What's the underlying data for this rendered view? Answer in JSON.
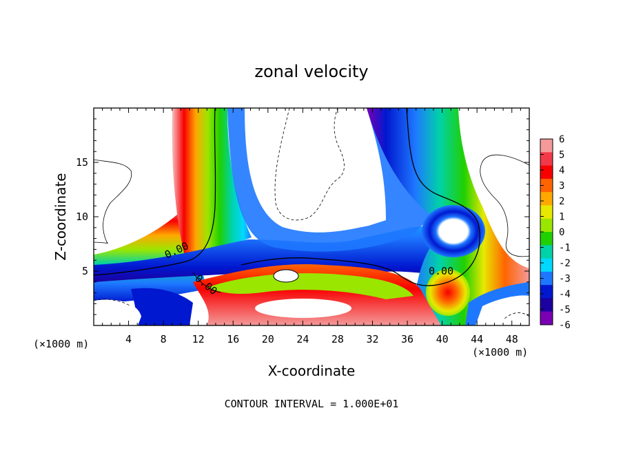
{
  "chart_data": {
    "type": "heatmap",
    "title": "zonal velocity",
    "xlabel": "X-coordinate",
    "ylabel": "Z-coordinate",
    "x_unit_left": "(×1000 m)",
    "x_unit_right": "(×1000 m)",
    "footer": "CONTOUR INTERVAL = 1.000E+01",
    "xlim": [
      0,
      50
    ],
    "ylim": [
      0,
      20
    ],
    "x_ticks": [
      4,
      8,
      12,
      16,
      20,
      24,
      28,
      32,
      36,
      40,
      44,
      48
    ],
    "y_ticks": [
      5,
      10,
      15
    ],
    "colorbar": {
      "levels": [
        6,
        5,
        4,
        3,
        2,
        1,
        0,
        -1,
        -2,
        -3,
        -4,
        -5,
        -6
      ],
      "colors": [
        "#f49a9a",
        "#f2394a",
        "#f80000",
        "#ff6400",
        "#ffa800",
        "#e8e800",
        "#9ae600",
        "#20d000",
        "#00d2a8",
        "#00d8ff",
        "#1e78ff",
        "#0018d0",
        "#1c00a0",
        "#7a00b4"
      ]
    },
    "contour_labels": [
      "0.00",
      "0.00",
      "0.00"
    ],
    "annotations": [
      "0.00",
      "0.00",
      "0.00"
    ]
  }
}
